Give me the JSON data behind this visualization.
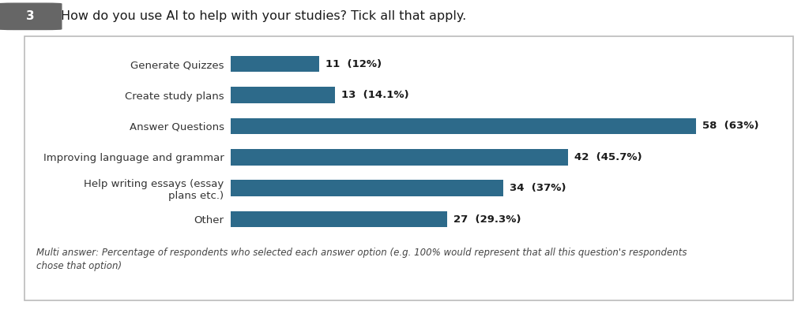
{
  "title": "How do you use AI to help with your studies? Tick all that apply.",
  "question_number": "3",
  "categories": [
    "Other",
    "Help writing essays (essay\nplans etc.)",
    "Improving language and grammar",
    "Answer Questions",
    "Create study plans",
    "Generate Quizzes"
  ],
  "values": [
    27,
    34,
    42,
    58,
    13,
    11
  ],
  "percentages": [
    "29.3%",
    "37%",
    "45.7%",
    "63%",
    "14.1%",
    "12%"
  ],
  "bar_color": "#2d6a8a",
  "footnote_line1": "Multi answer: Percentage of respondents who selected each answer option (e.g. 100% would represent that all this question's respondents",
  "footnote_line2": "chose that option)",
  "max_value": 65,
  "fig_bg": "#ffffff",
  "title_fontsize": 11.5,
  "label_fontsize": 9.5,
  "value_fontsize": 9.5,
  "footnote_fontsize": 8.5,
  "badge_color": "#666666"
}
